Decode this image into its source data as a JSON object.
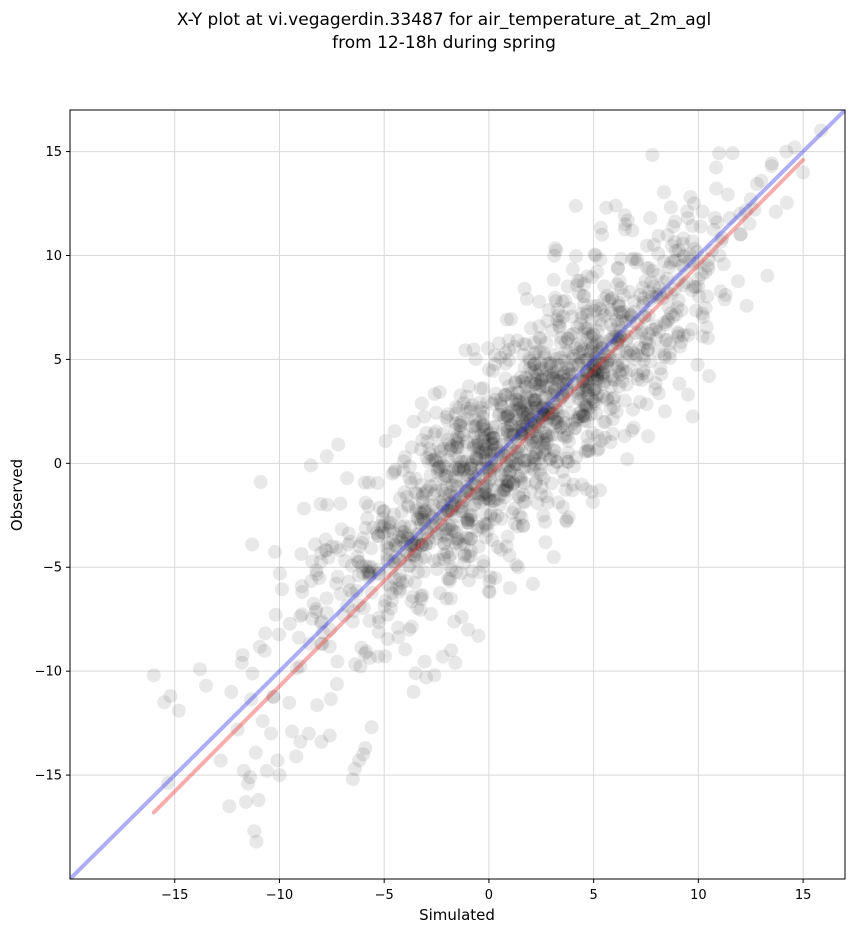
{
  "chart_data": {
    "type": "scatter",
    "title_line1": "X-Y plot at vi.vegagerdin.33487 for air_temperature_at_2m_agl",
    "title_line2": "from 12-18h during spring",
    "xlabel": "Simulated",
    "ylabel": "Observed",
    "xlim": [
      -20,
      17
    ],
    "ylim": [
      -20,
      17
    ],
    "xticks": [
      -15,
      -10,
      -5,
      0,
      5,
      10,
      15
    ],
    "yticks": [
      -15,
      -10,
      -5,
      0,
      5,
      10,
      15
    ],
    "xtick_labels": [
      "−15",
      "−10",
      "−5",
      "0",
      "5",
      "10",
      "15"
    ],
    "ytick_labels": [
      "−15",
      "−10",
      "−5",
      "0",
      "5",
      "10",
      "15"
    ],
    "grid": true,
    "marker_color": "#000000",
    "marker_alpha": 0.09,
    "lines": [
      {
        "name": "identity",
        "color": "#3333ee",
        "x": [
          -20,
          17
        ],
        "y": [
          -20,
          17
        ]
      },
      {
        "name": "fit",
        "color": "#ee3333",
        "x": [
          -16,
          15
        ],
        "y": [
          -16.8,
          14.6
        ]
      }
    ],
    "clusters": [
      {
        "note": "main cloud",
        "center": [
          1.5,
          1.5
        ],
        "spread_along": 6.5,
        "spread_across": 1.8,
        "count": 1500
      }
    ],
    "series": [
      {
        "points": [
          [
            -16,
            -10.2
          ],
          [
            -15.5,
            -11.5
          ],
          [
            -15.2,
            -11.2
          ],
          [
            -14.8,
            -11.9
          ],
          [
            -13.8,
            -9.9
          ],
          [
            -13.5,
            -10.7
          ],
          [
            -12.8,
            -14.3
          ],
          [
            -12.3,
            -11.0
          ],
          [
            -12.0,
            -12.8
          ],
          [
            -11.8,
            -9.6
          ],
          [
            -11.7,
            -14.8
          ],
          [
            -11.6,
            -16.3
          ],
          [
            -11.5,
            -15.4
          ],
          [
            -11.4,
            -15.1
          ],
          [
            -11.3,
            -3.9
          ],
          [
            -11.2,
            -17.7
          ],
          [
            -11.1,
            -18.2
          ],
          [
            -11.0,
            -16.2
          ],
          [
            -10.9,
            -0.9
          ],
          [
            -10.8,
            -12.4
          ],
          [
            -10.6,
            -14.8
          ],
          [
            -10.4,
            -13.0
          ],
          [
            -10.1,
            -14.3
          ],
          [
            -10.0,
            -15.0
          ],
          [
            -9.4,
            -12.9
          ],
          [
            -9.2,
            -14.1
          ],
          [
            -9.0,
            -13.4
          ],
          [
            -8.6,
            -13.0
          ],
          [
            -8.5,
            -0.1
          ],
          [
            -8.3,
            -3.9
          ],
          [
            -8.0,
            -13.4
          ],
          [
            -7.6,
            -13.1
          ],
          [
            -7.2,
            0.9
          ],
          [
            -6.5,
            -15.2
          ],
          [
            -6.4,
            -14.7
          ],
          [
            -6.2,
            -14.3
          ],
          [
            -6.0,
            -14.0
          ],
          [
            -5.9,
            -13.7
          ],
          [
            -5.6,
            -12.7
          ],
          [
            -5.3,
            -9.3
          ],
          [
            -5.0,
            -2.3
          ],
          [
            -4.6,
            -0.5
          ],
          [
            -4.0,
            0.3
          ],
          [
            -3.6,
            -11.0
          ],
          [
            -3.5,
            -10.1
          ],
          [
            -3.8,
            -8.0
          ],
          [
            -3.0,
            -10.3
          ],
          [
            -2.6,
            -10.2
          ],
          [
            -2.2,
            -9.3
          ],
          [
            -1.8,
            -9.0
          ],
          [
            -1.6,
            -9.6
          ],
          [
            -1.3,
            -7.4
          ],
          [
            -1.0,
            -8.0
          ],
          [
            -0.5,
            -8.3
          ],
          [
            -1.5,
            1.0
          ],
          [
            -2.4,
            0.8
          ],
          [
            -0.8,
            2.8
          ],
          [
            -0.4,
            3.6
          ],
          [
            0.0,
            4.5
          ],
          [
            0.3,
            5.2
          ],
          [
            0.8,
            4.8
          ],
          [
            1.2,
            5.6
          ],
          [
            1.7,
            8.4
          ],
          [
            1.0,
            -6.0
          ],
          [
            1.4,
            -5.0
          ],
          [
            2.1,
            -5.8
          ],
          [
            2.7,
            -3.8
          ],
          [
            3.7,
            -2.8
          ],
          [
            5.3,
            -1.3
          ],
          [
            6.6,
            0.2
          ],
          [
            7.6,
            1.3
          ],
          [
            8.4,
            2.5
          ],
          [
            9.5,
            3.3
          ],
          [
            10.5,
            4.2
          ],
          [
            11.3,
            8.1
          ],
          [
            13.7,
            12.1
          ],
          [
            15.0,
            14.0
          ],
          [
            14.6,
            15.2
          ],
          [
            14.2,
            15.0
          ],
          [
            13.5,
            14.3
          ],
          [
            13.0,
            13.6
          ],
          [
            12.5,
            12.7
          ],
          [
            12.0,
            12.0
          ],
          [
            11.5,
            11.8
          ],
          [
            10.9,
            11.6
          ],
          [
            10.2,
            12.1
          ],
          [
            9.5,
            11.8
          ],
          [
            8.8,
            11.4
          ],
          [
            7.7,
            11.8
          ],
          [
            6.5,
            11.5
          ],
          [
            5.6,
            12.3
          ],
          [
            5.4,
            11.0
          ],
          [
            5.1,
            10.0
          ],
          [
            4.7,
            9.0
          ],
          [
            4.3,
            8.2
          ],
          [
            3.2,
            7.8
          ],
          [
            2.4,
            6.6
          ],
          [
            6.0,
            4.0
          ],
          [
            7.0,
            5.0
          ],
          [
            8.0,
            6.0
          ],
          [
            9.0,
            7.5
          ],
          [
            10.0,
            8.5
          ],
          [
            11.0,
            10.0
          ],
          [
            12.0,
            11.0
          ]
        ]
      }
    ]
  }
}
